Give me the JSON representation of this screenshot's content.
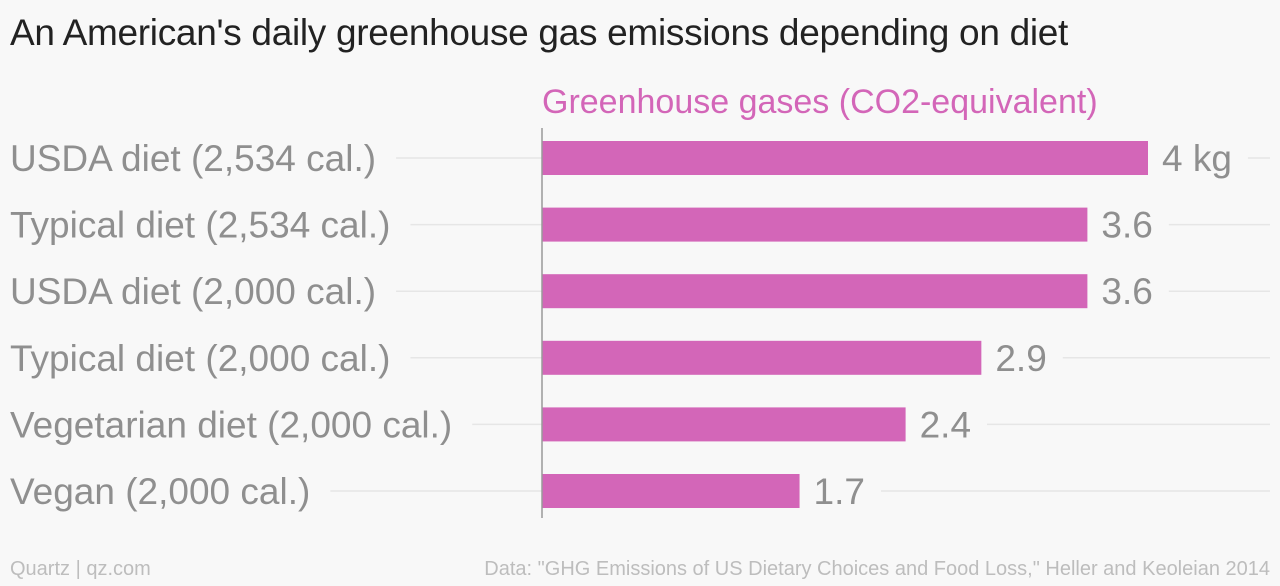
{
  "title": "An American's daily greenhouse gas emissions depending on diet",
  "footer": {
    "credit": "Quartz | qz.com",
    "source": "Data: \"GHG Emissions of US Dietary Choices and Food Loss,\" Heller and Keoleian 2014"
  },
  "colors": {
    "bar": "#d366b8",
    "series_label": "#d366b8",
    "category_text": "#8f8f8f",
    "value_text": "#8f8f8f",
    "gridline": "#e6e6e6",
    "axis": "#999999"
  },
  "chart_data": {
    "type": "bar",
    "orientation": "horizontal",
    "categories": [
      "USDA diet (2,534 cal.)",
      "Typical diet (2,534 cal.)",
      "USDA diet (2,000 cal.)",
      "Typical diet (2,000 cal.)",
      "Vegetarian diet (2,000 cal.)",
      "Vegan (2,000 cal.)"
    ],
    "series": [
      {
        "name": "Greenhouse gases (CO2-equivalent)",
        "values": [
          4,
          3.6,
          3.6,
          2.9,
          2.4,
          1.7
        ],
        "value_labels": [
          "4 kg",
          "3.6",
          "3.6",
          "2.9",
          "2.4",
          "1.7"
        ]
      }
    ],
    "xlim": [
      0,
      4
    ],
    "grid": true,
    "legend": "none"
  }
}
